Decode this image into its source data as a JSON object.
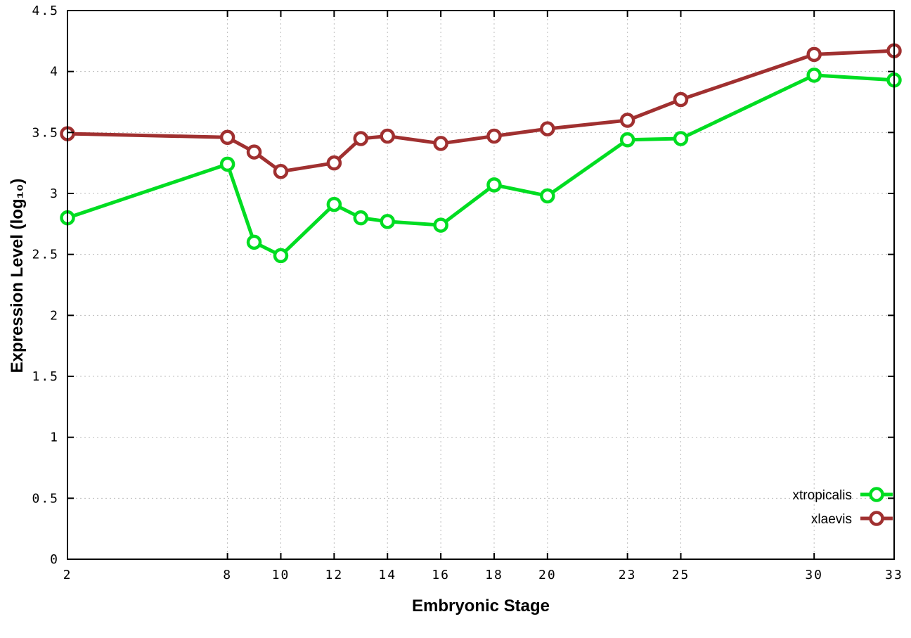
{
  "chart_data": {
    "type": "line",
    "title": "",
    "xlabel": "Embryonic Stage",
    "ylabel": "Expression Level (log₁₀)",
    "xlim": [
      2,
      33
    ],
    "ylim": [
      0,
      4.5
    ],
    "grid": true,
    "legend_position": "bottom-right",
    "x": [
      2,
      8,
      9,
      10,
      12,
      13,
      14,
      16,
      18,
      20,
      23,
      25,
      30,
      33
    ],
    "series": [
      {
        "name": "xtropicalis",
        "color": "#00dd22",
        "values": [
          2.8,
          3.24,
          2.6,
          2.49,
          2.91,
          2.8,
          2.77,
          2.74,
          3.07,
          2.98,
          3.44,
          3.45,
          3.97,
          3.93
        ]
      },
      {
        "name": "xlaevis",
        "color": "#a03030",
        "values": [
          3.49,
          3.46,
          3.34,
          3.18,
          3.25,
          3.45,
          3.47,
          3.41,
          3.47,
          3.53,
          3.6,
          3.77,
          4.14,
          4.17
        ]
      }
    ],
    "x_ticks": {
      "values": [
        2,
        8,
        10,
        12,
        14,
        16,
        18,
        20,
        23,
        25,
        30,
        33
      ],
      "labels": [
        "2",
        "8",
        "10",
        "12",
        "14",
        "16",
        "18",
        "20",
        "23",
        "25",
        "30",
        "33"
      ]
    },
    "y_ticks": {
      "values": [
        0,
        0.5,
        1,
        1.5,
        2,
        2.5,
        3,
        3.5,
        4,
        4.5
      ],
      "labels": [
        "0",
        "0.5",
        "1",
        "1.5",
        "2",
        "2.5",
        "3",
        "3.5",
        "4",
        "4.5"
      ]
    }
  },
  "colors": {
    "background": "#ffffff",
    "axis": "#000000",
    "grid": "#bdbdbd"
  }
}
